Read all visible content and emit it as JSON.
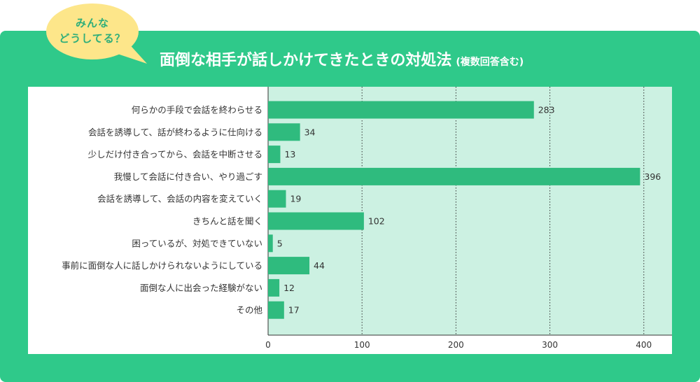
{
  "header": {
    "bubble_line1": "みんな",
    "bubble_line2": "どうしてる？",
    "title": "面倒な相手が話しかけてきたときの対処法",
    "subtitle": "(複数回答含む)"
  },
  "colors": {
    "panel": "#2fc98a",
    "bar": "#2fbb7e",
    "plot_bg": "#ccf1e2",
    "bubble": "#fde68a",
    "bubble_text": "#2fae7a"
  },
  "chart_data": {
    "type": "bar",
    "orientation": "horizontal",
    "categories": [
      "何らかの手段で会話を終わらせる",
      "会話を誘導して、話が終わるように仕向ける",
      "少しだけ付き合ってから、会話を中断させる",
      "我慢して会話に付き合い、やり過ごす",
      "会話を誘導して、会話の内容を変えていく",
      "きちんと話を聞く",
      "困っているが、対処できていない",
      "事前に面倒な人に話しかけられないようにしている",
      "面倒な人に出会った経験がない",
      "その他"
    ],
    "values": [
      283,
      34,
      13,
      396,
      19,
      102,
      5,
      44,
      12,
      17
    ],
    "xlim": [
      0,
      430
    ],
    "xticks": [
      "0",
      "100",
      "200",
      "300",
      "400"
    ],
    "xtick_values": [
      0,
      100,
      200,
      300,
      400
    ],
    "grid": "vertical dotted"
  }
}
